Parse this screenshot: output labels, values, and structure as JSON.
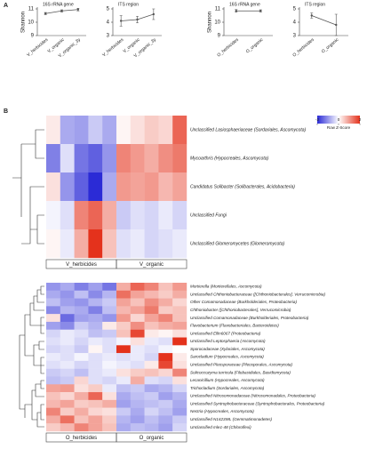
{
  "panel_labels": [
    "A",
    "B"
  ],
  "chart_data": [
    {
      "type": "line",
      "title": "16S rRNA gene",
      "ylabel": "Shannon",
      "categories": [
        "V_herbicides",
        "V_organic",
        "V_organic_3y"
      ],
      "values": [
        10.65,
        10.85,
        10.95
      ],
      "errors": [
        0.08,
        0.08,
        0.1
      ],
      "color": "#555555",
      "ylim": [
        9,
        11
      ],
      "yticks": [
        9,
        10,
        11
      ]
    },
    {
      "type": "line",
      "title": "ITS region",
      "categories": [
        "V_herbicides",
        "V_organic",
        "V_organic_3y"
      ],
      "values": [
        4.1,
        4.2,
        4.6
      ],
      "errors": [
        0.4,
        0.25,
        0.4
      ],
      "color": "#555555",
      "ylim": [
        3,
        5
      ],
      "yticks": [
        3,
        4,
        5
      ]
    },
    {
      "type": "line",
      "title": "16S rRNA gene",
      "ylabel": "Shannon",
      "categories": [
        "O_herbicides",
        "O_organic"
      ],
      "values": [
        10.85,
        10.85
      ],
      "errors": [
        0.1,
        0.08
      ],
      "color": "#555555",
      "ylim": [
        9,
        11
      ],
      "yticks": [
        9,
        10,
        11
      ]
    },
    {
      "type": "line",
      "title": "ITS region",
      "categories": [
        "O_herbicides",
        "O_organic"
      ],
      "values": [
        4.5,
        3.8
      ],
      "errors": [
        0.2,
        0.8
      ],
      "color": "#555555",
      "ylim": [
        3,
        5
      ],
      "yticks": [
        3,
        4,
        5
      ]
    },
    {
      "type": "heatmap",
      "groups": [
        "V_herbicides",
        "V_organic"
      ],
      "rows": [
        "Unclassified Lasiosphaeriaceae (Sordariales, Ascomycota)",
        "Mycoarthris (Hypocreales, Ascomycota)",
        "Candidatus Solibacter (Solibacterales, Acidobacteria)",
        "Unclassified Fungi",
        "Unclassified Glomeromycetes (Glomeromycota)"
      ],
      "values": [
        [
          0.2,
          -0.8,
          -0.9,
          -0.5,
          -0.8,
          0.1,
          0.3,
          0.5,
          0.4,
          1.5
        ],
        [
          -1.2,
          -0.3,
          -1.3,
          -1.5,
          -1.0,
          1.2,
          1.0,
          0.8,
          1.1,
          1.3
        ],
        [
          0.3,
          -1.0,
          -1.5,
          -2.0,
          -0.8,
          1.0,
          0.9,
          1.0,
          0.7,
          0.9
        ],
        [
          -0.1,
          -0.3,
          1.2,
          1.5,
          0.8,
          -0.5,
          -0.3,
          -0.4,
          -0.2,
          -0.4
        ],
        [
          0.1,
          -0.2,
          0.8,
          2.0,
          0.6,
          -0.3,
          -0.2,
          -0.4,
          -0.3,
          -0.2
        ]
      ],
      "colors": [
        "#2b2bd6",
        "#ffffff",
        "#e4321c"
      ],
      "lim": [
        -2,
        2
      ],
      "colorbar_label": "Row Z-Score",
      "colorbar_ticks": [
        -2,
        0,
        2
      ]
    },
    {
      "type": "heatmap",
      "groups": [
        "O_herbicides",
        "O_organic"
      ],
      "rows": [
        "Mortierella (Mortierellales, Ascomycota)",
        "Unclassified Chthoniobacteraceae ([Chthoniobacterales], Verrucomicrobia)",
        "Other Comamonadaceae (Burkholderiales, Proteobacteria)",
        "Chthoniobacter ([Chthoniobacterales], Verrucomicrobia)",
        "Unclassified Comamonadaceae (Burkholderiales, Proteobacteria)",
        "Flavobacterium (Flavobacteriales, Bacteroidetes)",
        "Unclassified Ellin6067 (Proteobacteria)",
        "Unclassified Leptosphaeria (Ascomycota)",
        "Sporocadaceae (Xylariales, Ascomycota)",
        "Sarocladium (Hypocreales, Ascomycota)",
        "Unclassified Pleosporaceae (Pleosporales, Ascomycota)",
        "Solicoccozyma terricola (Filobasidiales, Basidiomycota)",
        "Lecanicillium (Hypocreales, Ascomycota)",
        "Trichocladium (Sordariales, Ascomycota)",
        "Unclassified Nitrosomonadaceae (Nitrosomonadales, Proteobacteria)",
        "Unclassified Syntrophobacteraceae (Syntrophobacterales, Proteobacteria)",
        "Nectria (Hypocreales, Ascomycota)",
        "Unclassified N1423WL (Gemmatimonadetes)",
        "Unclassified mle1-48 (Chloroflexi)"
      ],
      "values": [
        [
          -1.0,
          -0.8,
          -1.2,
          -0.9,
          -1.3,
          0.8,
          1.5,
          1.2,
          0.6,
          1.0
        ],
        [
          -0.8,
          -1.0,
          -0.6,
          -1.1,
          -0.7,
          1.4,
          0.9,
          0.7,
          0.5,
          0.8
        ],
        [
          -0.6,
          -0.9,
          -1.0,
          -0.7,
          -0.5,
          0.9,
          0.6,
          1.1,
          0.8,
          0.4
        ],
        [
          -1.1,
          -0.7,
          -0.8,
          -1.2,
          -0.6,
          0.7,
          0.9,
          1.3,
          0.5,
          0.6
        ],
        [
          0.3,
          -1.4,
          -0.9,
          -0.8,
          -1.0,
          1.0,
          0.4,
          0.9,
          1.2,
          0.6
        ],
        [
          -0.9,
          -1.1,
          -0.5,
          -0.7,
          0.2,
          0.5,
          1.1,
          0.6,
          0.8,
          0.9
        ],
        [
          -0.4,
          -0.2,
          -0.3,
          -0.6,
          -0.5,
          0.6,
          1.8,
          0.2,
          0.1,
          0.3
        ],
        [
          -0.3,
          -0.2,
          -0.4,
          -0.2,
          -0.3,
          -0.1,
          0.3,
          -0.2,
          -0.3,
          2.0
        ],
        [
          -0.4,
          -0.3,
          -0.5,
          0.1,
          -0.3,
          2.0,
          -0.2,
          -0.3,
          -0.1,
          0.0
        ],
        [
          -0.2,
          -0.3,
          -0.1,
          -0.3,
          -0.2,
          -0.3,
          -0.2,
          -0.4,
          2.0,
          0.2
        ],
        [
          -0.3,
          -0.2,
          -0.4,
          -0.3,
          -0.1,
          -0.2,
          -0.3,
          0.2,
          1.8,
          0.3
        ],
        [
          -0.5,
          -0.4,
          -0.6,
          -0.3,
          -0.2,
          0.3,
          0.5,
          0.6,
          0.4,
          1.2
        ],
        [
          -0.6,
          -0.5,
          0.4,
          -0.3,
          -0.4,
          -0.2,
          0.8,
          -0.3,
          -0.4,
          0.3
        ],
        [
          0.9,
          1.0,
          0.3,
          0.5,
          -0.2,
          -0.6,
          -0.5,
          -0.8,
          -0.7,
          -0.4
        ],
        [
          0.6,
          0.4,
          0.8,
          1.5,
          0.3,
          -0.8,
          -0.6,
          -0.5,
          -0.9,
          -0.7
        ],
        [
          0.7,
          0.9,
          0.5,
          0.6,
          0.8,
          -0.9,
          -0.7,
          -0.6,
          -0.5,
          -0.8
        ],
        [
          1.2,
          0.5,
          0.8,
          0.4,
          0.3,
          -0.5,
          -0.8,
          -0.4,
          -0.6,
          -0.9
        ],
        [
          0.8,
          1.4,
          0.6,
          0.9,
          0.5,
          -0.7,
          -0.9,
          -0.6,
          -0.8,
          -0.5
        ],
        [
          0.5,
          0.7,
          1.2,
          0.9,
          0.6,
          -0.8,
          -0.6,
          -0.7,
          -0.9,
          -0.4
        ]
      ],
      "colors": [
        "#2b2bd6",
        "#ffffff",
        "#e4321c"
      ],
      "lim": [
        -2,
        2
      ]
    }
  ]
}
